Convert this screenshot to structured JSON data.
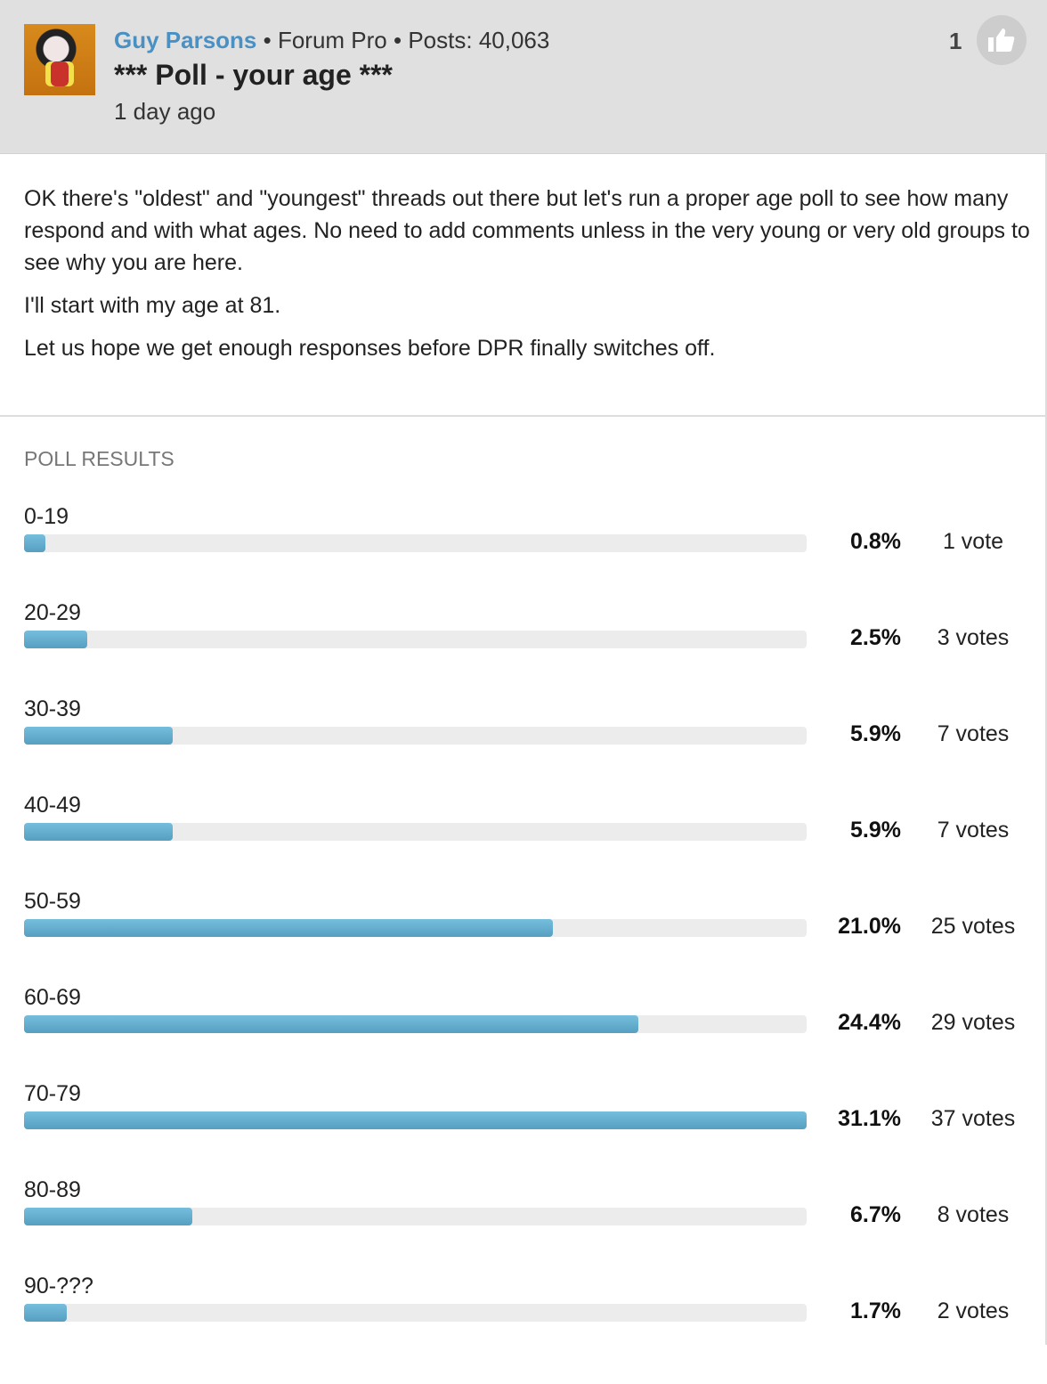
{
  "post": {
    "author": "Guy Parsons",
    "rank": "Forum Pro",
    "posts": "Posts: 40,063",
    "title": "*** Poll - your age ***",
    "time": "1 day ago",
    "like_count": "1",
    "like_icon": "thumbs-up-icon",
    "body": [
      "OK there's \"oldest\" and \"youngest\" threads out there but let's run a proper age poll to see how many respond and with what ages. No need to add comments unless in the very young or very old groups to see why you are here.",
      "I'll start with my age at 81.",
      "Let us hope we get enough responses before DPR finally switches off."
    ]
  },
  "poll": {
    "title": "POLL RESULTS",
    "bar_color": "#62aacd",
    "options": [
      {
        "label": "0-19",
        "pct": "0.8%",
        "value": 0.8,
        "votes": "1 vote"
      },
      {
        "label": "20-29",
        "pct": "2.5%",
        "value": 2.5,
        "votes": "3 votes"
      },
      {
        "label": "30-39",
        "pct": "5.9%",
        "value": 5.9,
        "votes": "7 votes"
      },
      {
        "label": "40-49",
        "pct": "5.9%",
        "value": 5.9,
        "votes": "7 votes"
      },
      {
        "label": "50-59",
        "pct": "21.0%",
        "value": 21.0,
        "votes": "25 votes"
      },
      {
        "label": "60-69",
        "pct": "24.4%",
        "value": 24.4,
        "votes": "29 votes"
      },
      {
        "label": "70-79",
        "pct": "31.1%",
        "value": 31.1,
        "votes": "37 votes"
      },
      {
        "label": "80-89",
        "pct": "6.7%",
        "value": 6.7,
        "votes": "8 votes"
      },
      {
        "label": "90-???",
        "pct": "1.7%",
        "value": 1.7,
        "votes": "2 votes"
      }
    ]
  }
}
